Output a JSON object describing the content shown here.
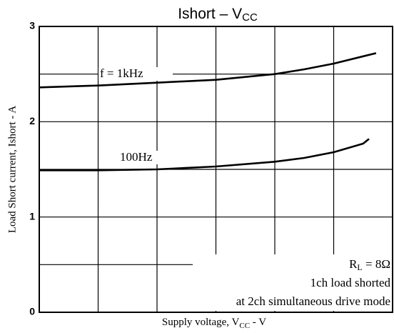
{
  "chart_data": {
    "type": "line",
    "title": {
      "main": "Ishort  –  V",
      "sub": "CC"
    },
    "y_label": "Load Short current, Ishort - A",
    "x_label": {
      "main": "Supply voltage, V",
      "sub": "CC",
      "unit": " - V"
    },
    "xlim": [
      0,
      6
    ],
    "xticks": [
      0,
      1,
      2,
      3,
      4,
      5,
      6
    ],
    "ylim": [
      0,
      3
    ],
    "yticks": [
      0,
      1,
      2,
      3
    ],
    "minor_yticks": [
      0.5,
      1.5,
      2.5
    ],
    "grid": true,
    "series": [
      {
        "name": "f = 1kHz",
        "color": "#000000",
        "x": [
          0,
          1,
          2,
          3,
          4,
          4.5,
          5,
          5.72
        ],
        "values": [
          2.36,
          2.38,
          2.41,
          2.44,
          2.5,
          2.55,
          2.61,
          2.72
        ]
      },
      {
        "name": "100Hz",
        "color": "#000000",
        "x": [
          0,
          1,
          2,
          3,
          4,
          4.5,
          5,
          5.5,
          5.6
        ],
        "values": [
          1.49,
          1.49,
          1.5,
          1.53,
          1.58,
          1.62,
          1.68,
          1.77,
          1.82
        ]
      }
    ],
    "annotations": {
      "r": "R",
      "r_sub": "L",
      "r_val": " = 8Ω",
      "line2": "1ch load shorted",
      "line3": "at 2ch simultaneous drive mode"
    }
  }
}
